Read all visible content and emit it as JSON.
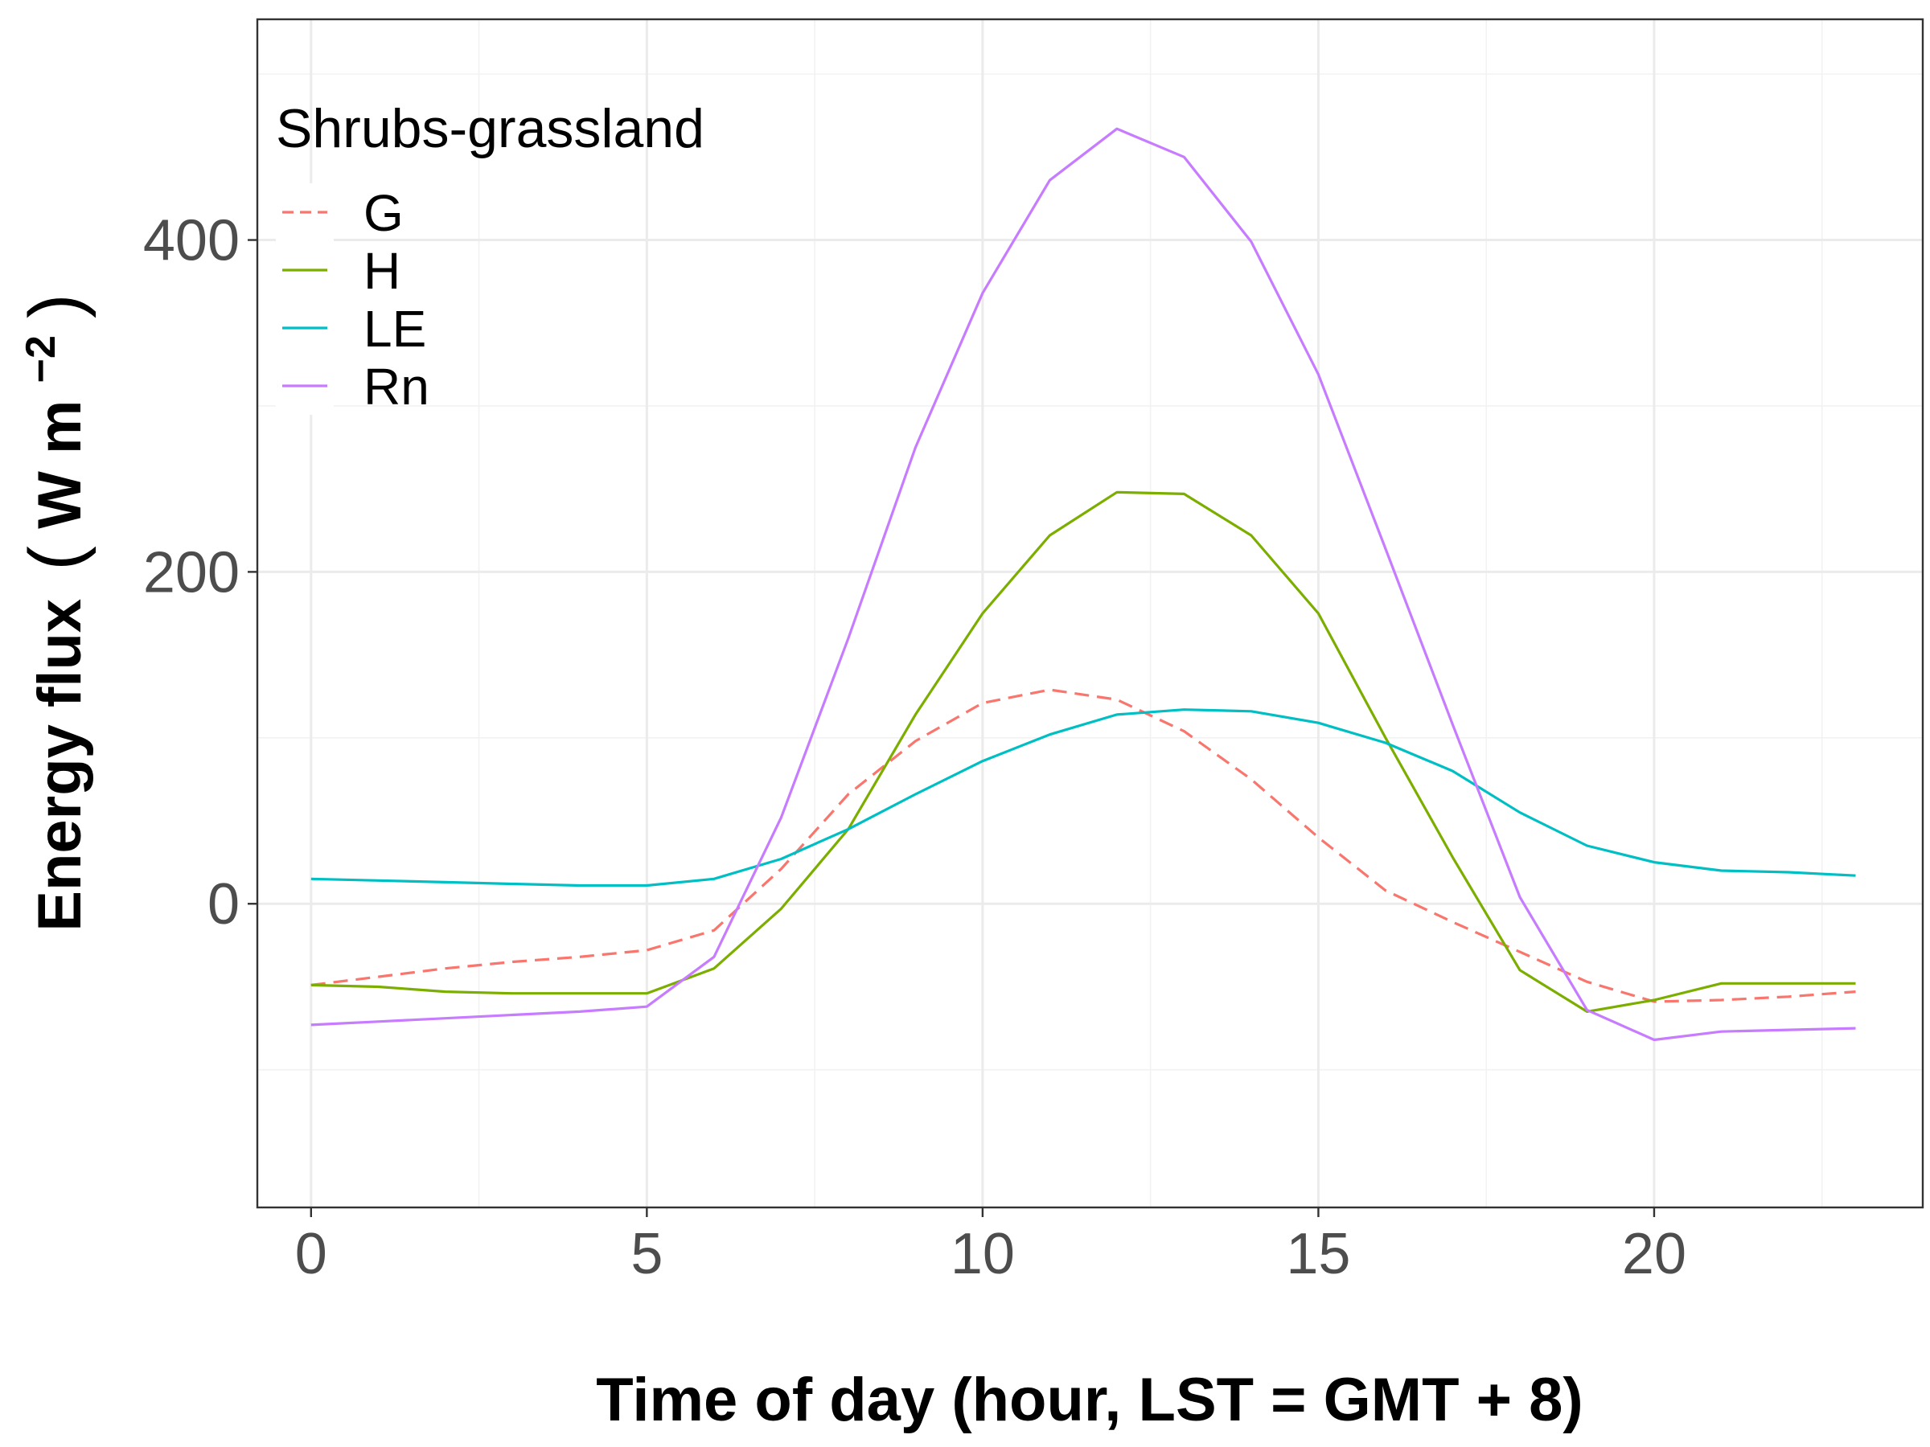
{
  "chart_data": {
    "type": "line",
    "xlabel": "Time of day (hour, LST = GMT + 8)",
    "ylabel_main": "Energy flux",
    "ylabel_unit": "W m",
    "ylabel_exp": "−2",
    "xlim": [
      -0.8,
      24.0
    ],
    "ylim": [
      -183,
      533
    ],
    "x_ticks": [
      0,
      5,
      10,
      15,
      20
    ],
    "y_ticks": [
      0,
      200,
      400
    ],
    "grid": true,
    "legend": {
      "title": "Shrubs-grassland",
      "position": "top-left"
    },
    "x": [
      0,
      1,
      2,
      3,
      4,
      5,
      6,
      7,
      8,
      9,
      10,
      11,
      12,
      13,
      14,
      15,
      16,
      17,
      18,
      19,
      20,
      21,
      22,
      23
    ],
    "series": [
      {
        "name": "G",
        "color": "#F8766D",
        "dash": true,
        "values": [
          -49,
          -44,
          -39,
          -35,
          -32,
          -28,
          -16,
          21,
          66,
          98,
          121,
          129,
          123,
          104,
          75,
          40,
          8,
          -11,
          -29,
          -47,
          -59,
          -58,
          -56,
          -53
        ]
      },
      {
        "name": "H",
        "color": "#7CAE00",
        "dash": false,
        "values": [
          -49,
          -50,
          -53,
          -54,
          -54,
          -54,
          -39,
          -3,
          45,
          114,
          175,
          222,
          248,
          247,
          222,
          175,
          100,
          28,
          -40,
          -65,
          -58,
          -48,
          -48,
          -48
        ]
      },
      {
        "name": "LE",
        "color": "#00BFC4",
        "dash": false,
        "values": [
          15,
          14,
          13,
          12,
          11,
          11,
          15,
          27,
          45,
          66,
          86,
          102,
          114,
          117,
          116,
          109,
          97,
          80,
          55,
          35,
          25,
          20,
          19,
          17
        ]
      },
      {
        "name": "Rn",
        "color": "#C77CFF",
        "dash": false,
        "values": [
          -73,
          -71,
          -69,
          -67,
          -65,
          -62,
          -32,
          52,
          160,
          275,
          368,
          436,
          467,
          450,
          399,
          319,
          214,
          108,
          4,
          -64,
          -82,
          -77,
          -76,
          -75
        ]
      }
    ]
  }
}
